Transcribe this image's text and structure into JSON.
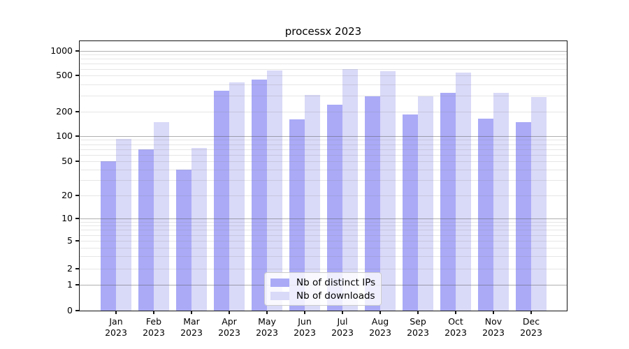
{
  "figure": {
    "title": "processx 2023"
  },
  "chart_data": {
    "type": "bar",
    "title": "processx 2023",
    "categories": [
      "Jan 2023",
      "Feb 2023",
      "Mar 2023",
      "Apr 2023",
      "May 2023",
      "Jun 2023",
      "Jul 2023",
      "Aug 2023",
      "Sep 2023",
      "Oct 2023",
      "Nov 2023",
      "Dec 2023"
    ],
    "series": [
      {
        "name": "Nb of distinct IPs",
        "color": "#aaaaf7",
        "values": [
          50,
          70,
          40,
          340,
          450,
          160,
          240,
          295,
          185,
          320,
          165,
          150
        ]
      },
      {
        "name": "Nb of downloads",
        "color": "#d9d9f8",
        "values": [
          92,
          150,
          72,
          420,
          580,
          305,
          600,
          560,
          295,
          540,
          320,
          290
        ]
      }
    ],
    "xlabel": "",
    "ylabel": "",
    "yscale": "symlog",
    "ylim": [
      0,
      1000
    ],
    "yticks": [
      0,
      1,
      2,
      5,
      10,
      20,
      50,
      100,
      200,
      500,
      1000
    ],
    "minor_gridlines": [
      2,
      3,
      4,
      5,
      6,
      7,
      8,
      9,
      20,
      30,
      40,
      50,
      60,
      70,
      80,
      90,
      200,
      300,
      400,
      500,
      600,
      700,
      800,
      900
    ],
    "major_gridlines": [
      1,
      10,
      100,
      1000
    ],
    "grid": true,
    "legend_position": "lower center",
    "colors": {
      "axis": "#141414",
      "major_grid": "#b0b0b0",
      "minor_grid": "#e6e6e6",
      "background": "#ffffff"
    }
  }
}
